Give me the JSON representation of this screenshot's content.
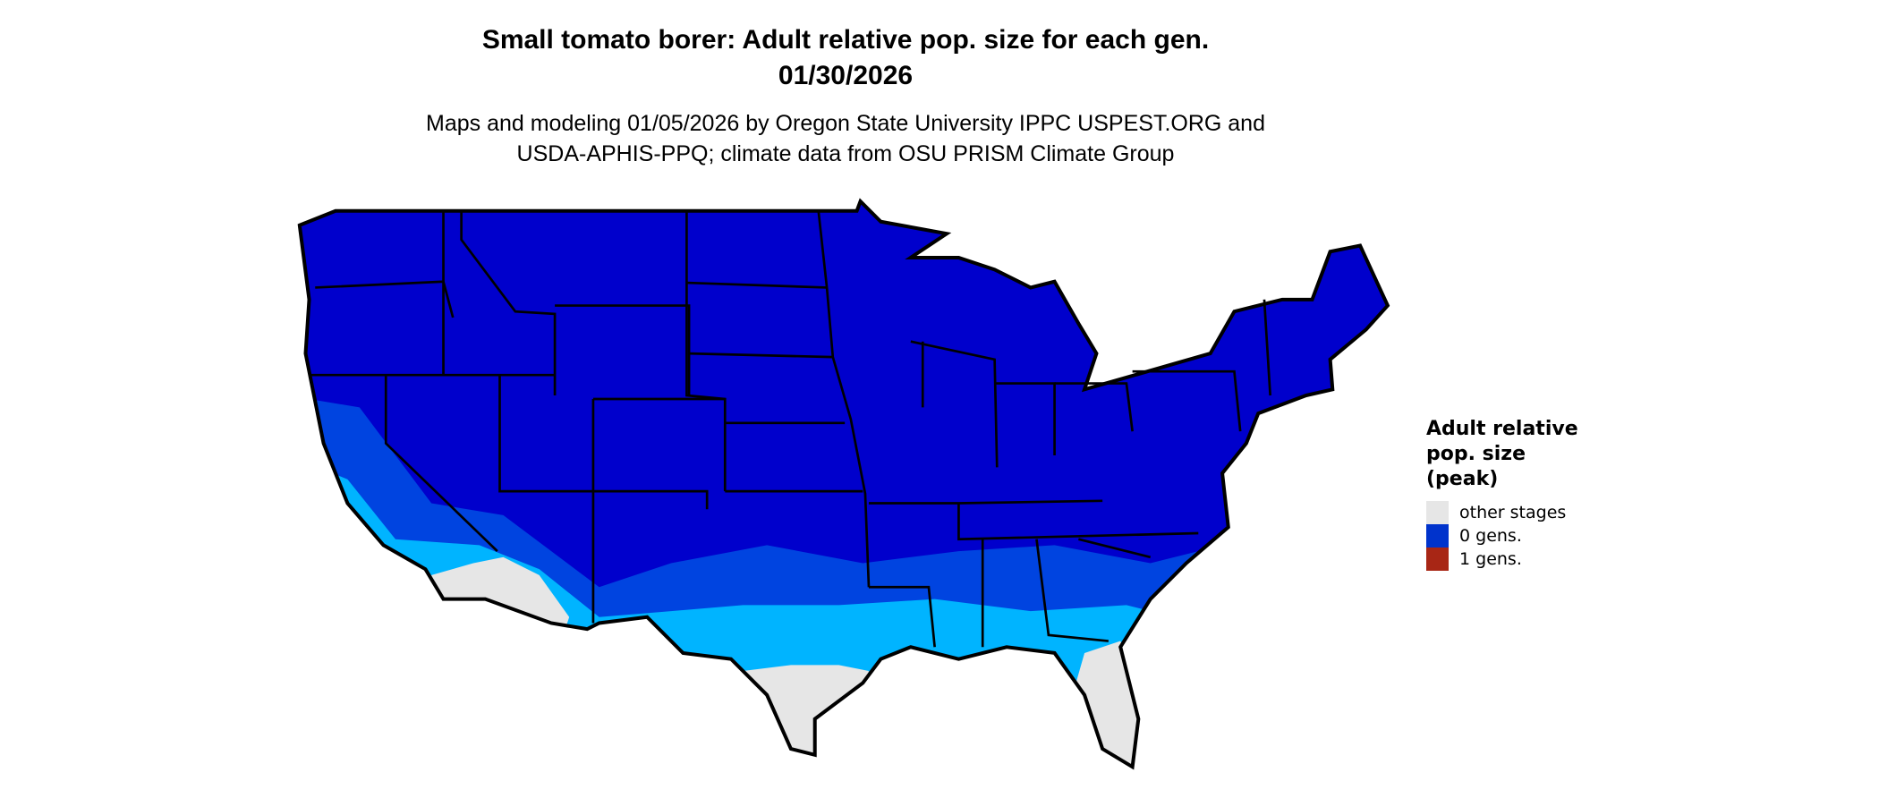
{
  "title": {
    "line1": "Small tomato borer: Adult relative pop. size for each gen.",
    "line2": "01/30/2026"
  },
  "subtitle": {
    "line1": "Maps and modeling 01/05/2026 by Oregon State University IPPC USPEST.ORG and",
    "line2": "USDA-APHIS-PPQ; climate data from OSU PRISM Climate Group"
  },
  "map": {
    "region": "Contiguous United States",
    "colors": {
      "main": "#0000cc",
      "mid_band": "#0044e0",
      "light_band": "#00b4ff",
      "other_stages": "#e6e6e6",
      "border": "#000000"
    }
  },
  "legend": {
    "title": [
      "Adult relative",
      "pop. size",
      "(peak)"
    ],
    "items": [
      {
        "label": "other stages",
        "color": "#e6e6e6"
      },
      {
        "label": "0 gens.",
        "color": "#0033cc"
      },
      {
        "label": "1 gens.",
        "color": "#a82615"
      }
    ]
  }
}
